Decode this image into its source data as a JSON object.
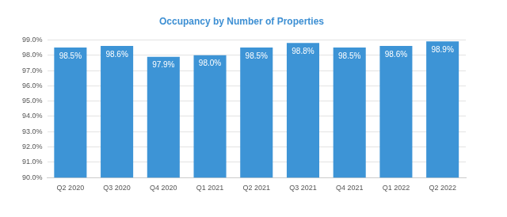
{
  "chart_data": {
    "type": "bar",
    "title": "Occupancy by Number of Properties",
    "categories": [
      "Q2 2020",
      "Q3 2020",
      "Q4 2020",
      "Q1 2021",
      "Q2 2021",
      "Q3 2021",
      "Q4 2021",
      "Q1 2022",
      "Q2 2022"
    ],
    "values": [
      98.5,
      98.6,
      97.9,
      98.0,
      98.5,
      98.8,
      98.5,
      98.6,
      98.9
    ],
    "value_labels": [
      "98.5%",
      "98.6%",
      "97.9%",
      "98.0%",
      "98.5%",
      "98.8%",
      "98.5%",
      "98.6%",
      "98.9%"
    ],
    "color": "#3d94d6",
    "ylim": [
      90,
      99
    ],
    "yticks": [
      {
        "value": 90,
        "label": "90.0%"
      },
      {
        "value": 91,
        "label": "91.0%"
      },
      {
        "value": 92,
        "label": "92.0%"
      },
      {
        "value": 93,
        "label": "93.0%"
      },
      {
        "value": 94,
        "label": "94.0%"
      },
      {
        "value": 95,
        "label": "95.0%"
      },
      {
        "value": 96,
        "label": "96.0%"
      },
      {
        "value": 97,
        "label": "97.0%"
      },
      {
        "value": 98,
        "label": "98.0%"
      },
      {
        "value": 99,
        "label": "99.0%"
      }
    ],
    "grid": true,
    "data_labels": true
  }
}
